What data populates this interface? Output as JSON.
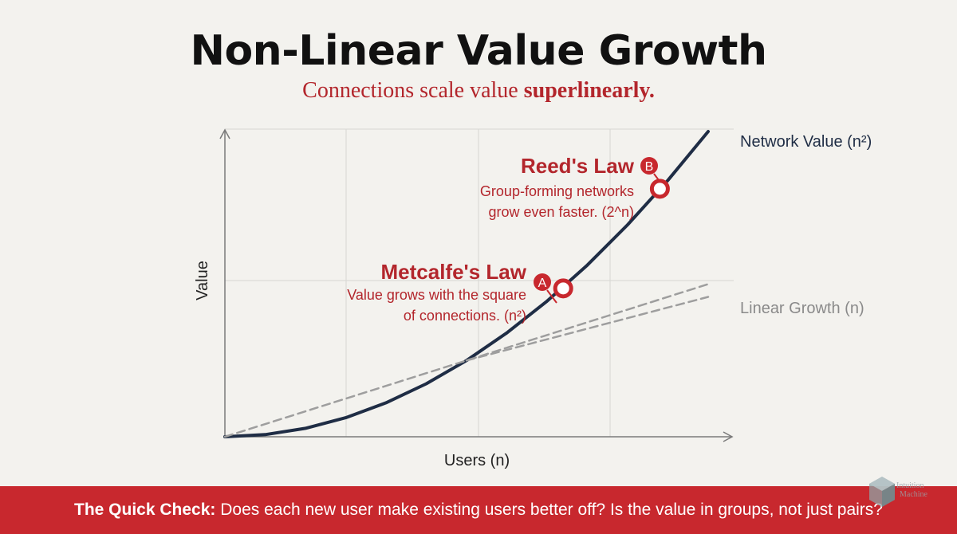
{
  "header": {
    "title": "Non-Linear Value Growth",
    "subtitle_plain": "Connections scale value ",
    "subtitle_bold": "superlinearly."
  },
  "chart_data": {
    "type": "line",
    "xlabel": "Users (n)",
    "ylabel": "Value",
    "grid": true,
    "series": [
      {
        "name": "Network Value (n²)",
        "style": "solid",
        "color": "#1f2d45",
        "x": [
          0,
          1,
          2,
          3,
          4,
          5,
          6,
          7,
          8,
          9,
          10,
          11,
          12
        ],
        "y": [
          0.0,
          0.05,
          0.2,
          0.45,
          0.8,
          1.25,
          1.8,
          2.45,
          3.2,
          4.05,
          5.0,
          6.05,
          7.2
        ]
      },
      {
        "name": "Linear Growth (n)",
        "style": "dashed",
        "color": "#9e9e9e",
        "x": [
          0,
          12
        ],
        "y": [
          0,
          3.6
        ]
      },
      {
        "name": "",
        "style": "dashed",
        "color": "#9e9e9e",
        "x": [
          6,
          12
        ],
        "y": [
          1.8,
          3.3
        ]
      }
    ],
    "annotations": [
      {
        "marker": "A",
        "x": 8.4,
        "y": 3.5,
        "title": "Metcalfe's Law",
        "lines": [
          "Value grows with the square",
          "of connections. (n²)"
        ]
      },
      {
        "marker": "B",
        "x": 10.8,
        "y": 5.85,
        "title": "Reed's Law",
        "lines": [
          "Group-forming networks",
          "grow even faster. (2^n)"
        ]
      }
    ],
    "accent_color": "#c8282e"
  },
  "footer": {
    "label": "The Quick Check:",
    "text": " Does each new user make existing users better off? Is the value in groups, not just pairs?"
  },
  "logo": {
    "line1": "Intuition",
    "line2": "Machine"
  }
}
